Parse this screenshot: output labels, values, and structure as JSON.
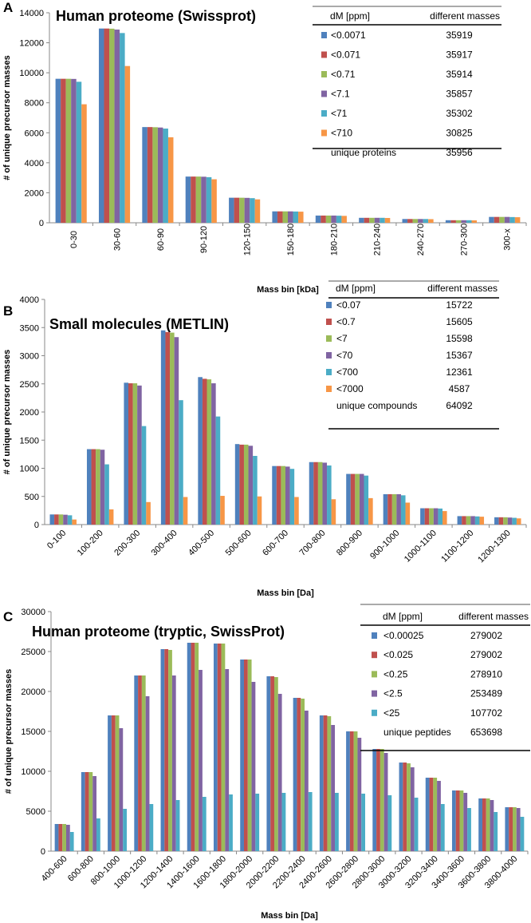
{
  "chart_data": [
    {
      "type": "bar",
      "panel": "A",
      "title": "Human proteome (Swissprot)",
      "xlabel": "Mass bin [kDa]",
      "ylabel": "# of unique precursor masses",
      "ylim": [
        0,
        14000
      ],
      "yticks": [
        0,
        2000,
        4000,
        6000,
        8000,
        10000,
        12000,
        14000
      ],
      "categories": [
        "0-30",
        "30-60",
        "60-90",
        "90-120",
        "120-150",
        "150-180",
        "180-210",
        "210-240",
        "240-270",
        "270-300",
        "300-x"
      ],
      "series": [
        {
          "name": "<0.0071",
          "color": "#4f81bd",
          "values": [
            9600,
            12950,
            6380,
            3080,
            1670,
            760,
            480,
            330,
            250,
            170,
            390
          ]
        },
        {
          "name": "<0.071",
          "color": "#c0504d",
          "values": [
            9600,
            12950,
            6380,
            3080,
            1670,
            760,
            480,
            330,
            250,
            170,
            390
          ]
        },
        {
          "name": "<0.71",
          "color": "#9bbb59",
          "values": [
            9600,
            12940,
            6370,
            3080,
            1670,
            760,
            480,
            330,
            250,
            170,
            390
          ]
        },
        {
          "name": "<7.1",
          "color": "#8064a2",
          "values": [
            9590,
            12880,
            6350,
            3070,
            1660,
            760,
            480,
            330,
            250,
            170,
            390
          ]
        },
        {
          "name": "<71",
          "color": "#4bacc6",
          "values": [
            9400,
            12650,
            6280,
            3040,
            1640,
            750,
            470,
            330,
            250,
            170,
            380
          ]
        },
        {
          "name": "<710",
          "color": "#f79646",
          "values": [
            7900,
            10450,
            5700,
            2900,
            1560,
            740,
            460,
            320,
            240,
            160,
            370
          ]
        }
      ],
      "legend": {
        "position": "top-right",
        "header_left": "dM [ppm]",
        "header_right": "different masses",
        "rows": [
          {
            "label": "<0.0071",
            "value": "35919"
          },
          {
            "label": "<0.071",
            "value": "35917"
          },
          {
            "label": "<0.71",
            "value": "35914"
          },
          {
            "label": "<7.1",
            "value": "35857"
          },
          {
            "label": "<71",
            "value": "35302"
          },
          {
            "label": "<710",
            "value": "30825"
          }
        ],
        "footer_label": "unique proteins",
        "footer_value": "35956"
      }
    },
    {
      "type": "bar",
      "panel": "B",
      "title": "Small molecules (METLIN)",
      "xlabel": "Mass bin [Da]",
      "ylabel": "# of unique precursor masses",
      "ylim": [
        0,
        4000
      ],
      "yticks": [
        0,
        500,
        1000,
        1500,
        2000,
        2500,
        3000,
        3500,
        4000
      ],
      "categories": [
        "0-100",
        "100-200",
        "200-300",
        "300-400",
        "400-500",
        "500-600",
        "600-700",
        "700-800",
        "800-900",
        "900-1000",
        "1000-1100",
        "1100-1200",
        "1200-1300"
      ],
      "series": [
        {
          "name": "<0.07",
          "color": "#4f81bd",
          "values": [
            180,
            1340,
            2520,
            3450,
            2620,
            1430,
            1040,
            1110,
            900,
            540,
            290,
            150,
            130
          ]
        },
        {
          "name": "<0.7",
          "color": "#c0504d",
          "values": [
            180,
            1340,
            2510,
            3420,
            2590,
            1420,
            1040,
            1110,
            900,
            540,
            290,
            150,
            130
          ]
        },
        {
          "name": "<7",
          "color": "#9bbb59",
          "values": [
            180,
            1340,
            2510,
            3410,
            2580,
            1420,
            1040,
            1110,
            900,
            540,
            290,
            150,
            130
          ]
        },
        {
          "name": "<70",
          "color": "#8064a2",
          "values": [
            175,
            1330,
            2470,
            3330,
            2510,
            1400,
            1030,
            1100,
            900,
            540,
            290,
            150,
            125
          ]
        },
        {
          "name": "<700",
          "color": "#4bacc6",
          "values": [
            165,
            1070,
            1750,
            2210,
            1920,
            1220,
            990,
            1050,
            870,
            520,
            285,
            145,
            120
          ]
        },
        {
          "name": "<7000",
          "color": "#f79646",
          "values": [
            90,
            270,
            400,
            490,
            510,
            500,
            490,
            450,
            470,
            390,
            240,
            140,
            110
          ]
        }
      ],
      "legend": {
        "position": "top-right",
        "header_left": "dM [ppm]",
        "header_right": "different masses",
        "rows": [
          {
            "label": "<0.07",
            "value": "15722"
          },
          {
            "label": "<0.7",
            "value": "15605"
          },
          {
            "label": "<7",
            "value": "15598"
          },
          {
            "label": "<70",
            "value": "15367"
          },
          {
            "label": "<700",
            "value": "12361"
          },
          {
            "label": "<7000",
            "value": "4587"
          }
        ],
        "footer_label": "unique compounds",
        "footer_value": "64092"
      }
    },
    {
      "type": "bar",
      "panel": "C",
      "title": "Human proteome (tryptic, SwissProt)",
      "xlabel": "Mass bin [Da]",
      "ylabel": "# of unique precursor masses",
      "ylim": [
        0,
        30000
      ],
      "yticks": [
        0,
        5000,
        10000,
        15000,
        20000,
        25000,
        30000
      ],
      "categories": [
        "400-600",
        "600-800",
        "800-1000",
        "1000-1200",
        "1200-1400",
        "1400-1600",
        "1600-1800",
        "1800-2000",
        "2000-2200",
        "2200-2400",
        "2400-2600",
        "2600-2800",
        "2800-3000",
        "3000-3200",
        "3200-3400",
        "3400-3600",
        "3600-3800",
        "3800-4000"
      ],
      "series": [
        {
          "name": "<0.00025",
          "color": "#4f81bd",
          "values": [
            3400,
            9900,
            17000,
            22000,
            25300,
            26100,
            26000,
            24000,
            21900,
            19200,
            17000,
            15000,
            12800,
            11100,
            9200,
            7600,
            6600,
            5500
          ]
        },
        {
          "name": "<0.025",
          "color": "#c0504d",
          "values": [
            3400,
            9900,
            17000,
            22000,
            25300,
            26100,
            26000,
            24000,
            21900,
            19200,
            17000,
            15000,
            12800,
            11100,
            9200,
            7600,
            6600,
            5500
          ]
        },
        {
          "name": "<0.25",
          "color": "#9bbb59",
          "values": [
            3400,
            9900,
            17000,
            22000,
            25200,
            26100,
            26000,
            24000,
            21800,
            19100,
            16900,
            15000,
            12800,
            11000,
            9200,
            7600,
            6600,
            5500
          ]
        },
        {
          "name": "<2.5",
          "color": "#8064a2",
          "values": [
            3300,
            9400,
            15400,
            19400,
            22000,
            22700,
            22800,
            21200,
            19700,
            17600,
            15800,
            14200,
            12300,
            10500,
            8800,
            7300,
            6400,
            5400
          ]
        },
        {
          "name": "<25",
          "color": "#4bacc6",
          "values": [
            2400,
            4100,
            5300,
            5900,
            6400,
            6800,
            7100,
            7200,
            7300,
            7400,
            7300,
            7200,
            7000,
            6700,
            5900,
            5400,
            4900,
            4300
          ]
        }
      ],
      "legend": {
        "position": "top-right",
        "header_left": "dM [ppm]",
        "header_right": "different masses",
        "rows": [
          {
            "label": "<0.00025",
            "value": "279002"
          },
          {
            "label": "<0.025",
            "value": "279002"
          },
          {
            "label": "<0.25",
            "value": "278910"
          },
          {
            "label": "<2.5",
            "value": "253489"
          },
          {
            "label": "<25",
            "value": "107702"
          }
        ],
        "footer_label": "unique peptides",
        "footer_value": "653698"
      }
    }
  ]
}
